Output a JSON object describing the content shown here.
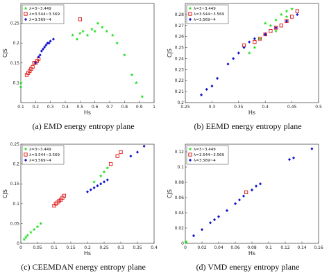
{
  "chart_data": [
    {
      "type": "scatter",
      "caption": "(a) EMD energy entropy plane",
      "xlabel": "Hs",
      "ylabel": "CJS",
      "xlim": [
        0.1,
        1
      ],
      "xticks": [
        0.1,
        0.2,
        0.3,
        0.4,
        0.5,
        0.6,
        0.7,
        0.8,
        0.9,
        1
      ],
      "ylim": [
        0.05,
        0.3
      ],
      "yticks": [
        0.1,
        0.15,
        0.2,
        0.25
      ],
      "legend": "upper left",
      "series": [
        {
          "name": "λ=3~3.449",
          "color": "#22dd22",
          "marker": "star",
          "x": [
            0.1,
            0.1,
            0.45,
            0.48,
            0.5,
            0.52,
            0.55,
            0.58,
            0.6,
            0.62,
            0.65,
            0.68,
            0.72,
            0.75,
            0.8,
            0.85,
            0.88,
            0.92
          ],
          "values": [
            0.09,
            0.1,
            0.22,
            0.21,
            0.225,
            0.23,
            0.22,
            0.235,
            0.23,
            0.25,
            0.24,
            0.23,
            0.22,
            0.2,
            0.17,
            0.12,
            0.1,
            0.065
          ]
        },
        {
          "name": "λ=3.544~3.569",
          "color": "#dd1111",
          "marker": "square",
          "x": [
            0.14,
            0.15,
            0.16,
            0.17,
            0.18,
            0.19,
            0.2,
            0.21,
            0.22,
            0.5
          ],
          "values": [
            0.12,
            0.125,
            0.13,
            0.135,
            0.14,
            0.15,
            0.15,
            0.155,
            0.16,
            0.26
          ]
        },
        {
          "name": "λ=3.569~4",
          "color": "#1111cc",
          "marker": "diamond",
          "x": [
            0.2,
            0.22,
            0.23,
            0.24,
            0.25,
            0.26,
            0.27,
            0.28,
            0.29,
            0.3,
            0.32
          ],
          "values": [
            0.15,
            0.165,
            0.17,
            0.18,
            0.185,
            0.19,
            0.195,
            0.2,
            0.2,
            0.205,
            0.21
          ]
        }
      ]
    },
    {
      "type": "scatter",
      "caption": "(b) EEMD energy entropy plane",
      "xlabel": "Hs",
      "ylabel": "CJS",
      "xlim": [
        0.25,
        0.5
      ],
      "xticks": [
        0.25,
        0.3,
        0.35,
        0.4,
        0.45,
        0.5
      ],
      "ylim": [
        0.2,
        0.29
      ],
      "yticks": [
        0.2,
        0.21,
        0.22,
        0.23,
        0.24,
        0.25,
        0.26,
        0.27,
        0.28
      ],
      "legend": "upper left",
      "series": [
        {
          "name": "λ=3~3.449",
          "color": "#22dd22",
          "marker": "star",
          "x": [
            0.37,
            0.38,
            0.39,
            0.4,
            0.41,
            0.42,
            0.43,
            0.44,
            0.45,
            0.4,
            0.42,
            0.44
          ],
          "values": [
            0.245,
            0.25,
            0.258,
            0.262,
            0.27,
            0.275,
            0.28,
            0.283,
            0.285,
            0.272,
            0.265,
            0.278
          ]
        },
        {
          "name": "λ=3.544~3.569",
          "color": "#dd1111",
          "marker": "square",
          "x": [
            0.38,
            0.39,
            0.4,
            0.41,
            0.42,
            0.43,
            0.44,
            0.45,
            0.46,
            0.36
          ],
          "values": [
            0.255,
            0.258,
            0.262,
            0.265,
            0.268,
            0.27,
            0.274,
            0.278,
            0.283,
            0.252
          ]
        },
        {
          "name": "λ=3.569~4",
          "color": "#1111cc",
          "marker": "diamond",
          "x": [
            0.28,
            0.29,
            0.3,
            0.31,
            0.33,
            0.34,
            0.35,
            0.36,
            0.37,
            0.38,
            0.4,
            0.42,
            0.44,
            0.46
          ],
          "values": [
            0.207,
            0.212,
            0.215,
            0.222,
            0.235,
            0.24,
            0.245,
            0.25,
            0.255,
            0.258,
            0.262,
            0.268,
            0.274,
            0.28
          ]
        }
      ]
    },
    {
      "type": "scatter",
      "caption": "(c) CEEMDAN energy entropy plane",
      "xlabel": "Hs",
      "ylabel": "CJS",
      "xlim": [
        0,
        0.4
      ],
      "xticks": [
        0,
        0.05,
        0.1,
        0.15,
        0.2,
        0.25,
        0.3,
        0.35,
        0.4
      ],
      "ylim": [
        0,
        0.25
      ],
      "yticks": [
        0,
        0.05,
        0.1,
        0.15,
        0.2,
        0.25
      ],
      "legend": "upper left",
      "series": [
        {
          "name": "λ=3~3.449",
          "color": "#22dd22",
          "marker": "star",
          "x": [
            0.01,
            0.015,
            0.02,
            0.03,
            0.04,
            0.05,
            0.06,
            0.22,
            0.24,
            0.25,
            0.26
          ],
          "values": [
            0.01,
            0.015,
            0.02,
            0.028,
            0.035,
            0.042,
            0.05,
            0.155,
            0.17,
            0.18,
            0.19
          ]
        },
        {
          "name": "λ=3.544~3.569",
          "color": "#dd1111",
          "marker": "square",
          "x": [
            0.1,
            0.105,
            0.11,
            0.115,
            0.12,
            0.125,
            0.13,
            0.27,
            0.29,
            0.3
          ],
          "values": [
            0.095,
            0.1,
            0.103,
            0.107,
            0.11,
            0.115,
            0.12,
            0.2,
            0.22,
            0.23
          ]
        },
        {
          "name": "λ=3.569~4",
          "color": "#1111cc",
          "marker": "diamond",
          "x": [
            0.2,
            0.21,
            0.22,
            0.23,
            0.24,
            0.25,
            0.26,
            0.33,
            0.35,
            0.37
          ],
          "values": [
            0.13,
            0.135,
            0.14,
            0.145,
            0.15,
            0.155,
            0.16,
            0.22,
            0.23,
            0.245
          ]
        }
      ]
    },
    {
      "type": "scatter",
      "caption": "(d) VMD energy entropy plane",
      "xlabel": "Hs",
      "ylabel": "CJS",
      "xlim": [
        0,
        0.16
      ],
      "xticks": [
        0,
        0.02,
        0.04,
        0.06,
        0.08,
        0.1,
        0.12,
        0.14,
        0.16
      ],
      "ylim": [
        0,
        0.13
      ],
      "yticks": [
        0,
        0.02,
        0.04,
        0.06,
        0.08,
        0.1,
        0.12
      ],
      "legend": "upper left",
      "series": [
        {
          "name": "λ=3~3.449",
          "color": "#22dd22",
          "marker": "star",
          "x": [
            0.0005,
            0.001
          ],
          "values": [
            0.001,
            0.002
          ]
        },
        {
          "name": "λ=3.544~3.569",
          "color": "#dd1111",
          "marker": "square",
          "x": [
            0.073
          ],
          "values": [
            0.067
          ]
        },
        {
          "name": "λ=3.569~4",
          "color": "#1111cc",
          "marker": "diamond",
          "x": [
            0.01,
            0.02,
            0.03,
            0.035,
            0.04,
            0.05,
            0.06,
            0.065,
            0.07,
            0.08,
            0.085,
            0.09,
            0.125,
            0.13,
            0.152
          ],
          "values": [
            0.01,
            0.018,
            0.027,
            0.031,
            0.035,
            0.043,
            0.052,
            0.057,
            0.062,
            0.07,
            0.075,
            0.078,
            0.11,
            0.112,
            0.124
          ]
        }
      ]
    }
  ]
}
